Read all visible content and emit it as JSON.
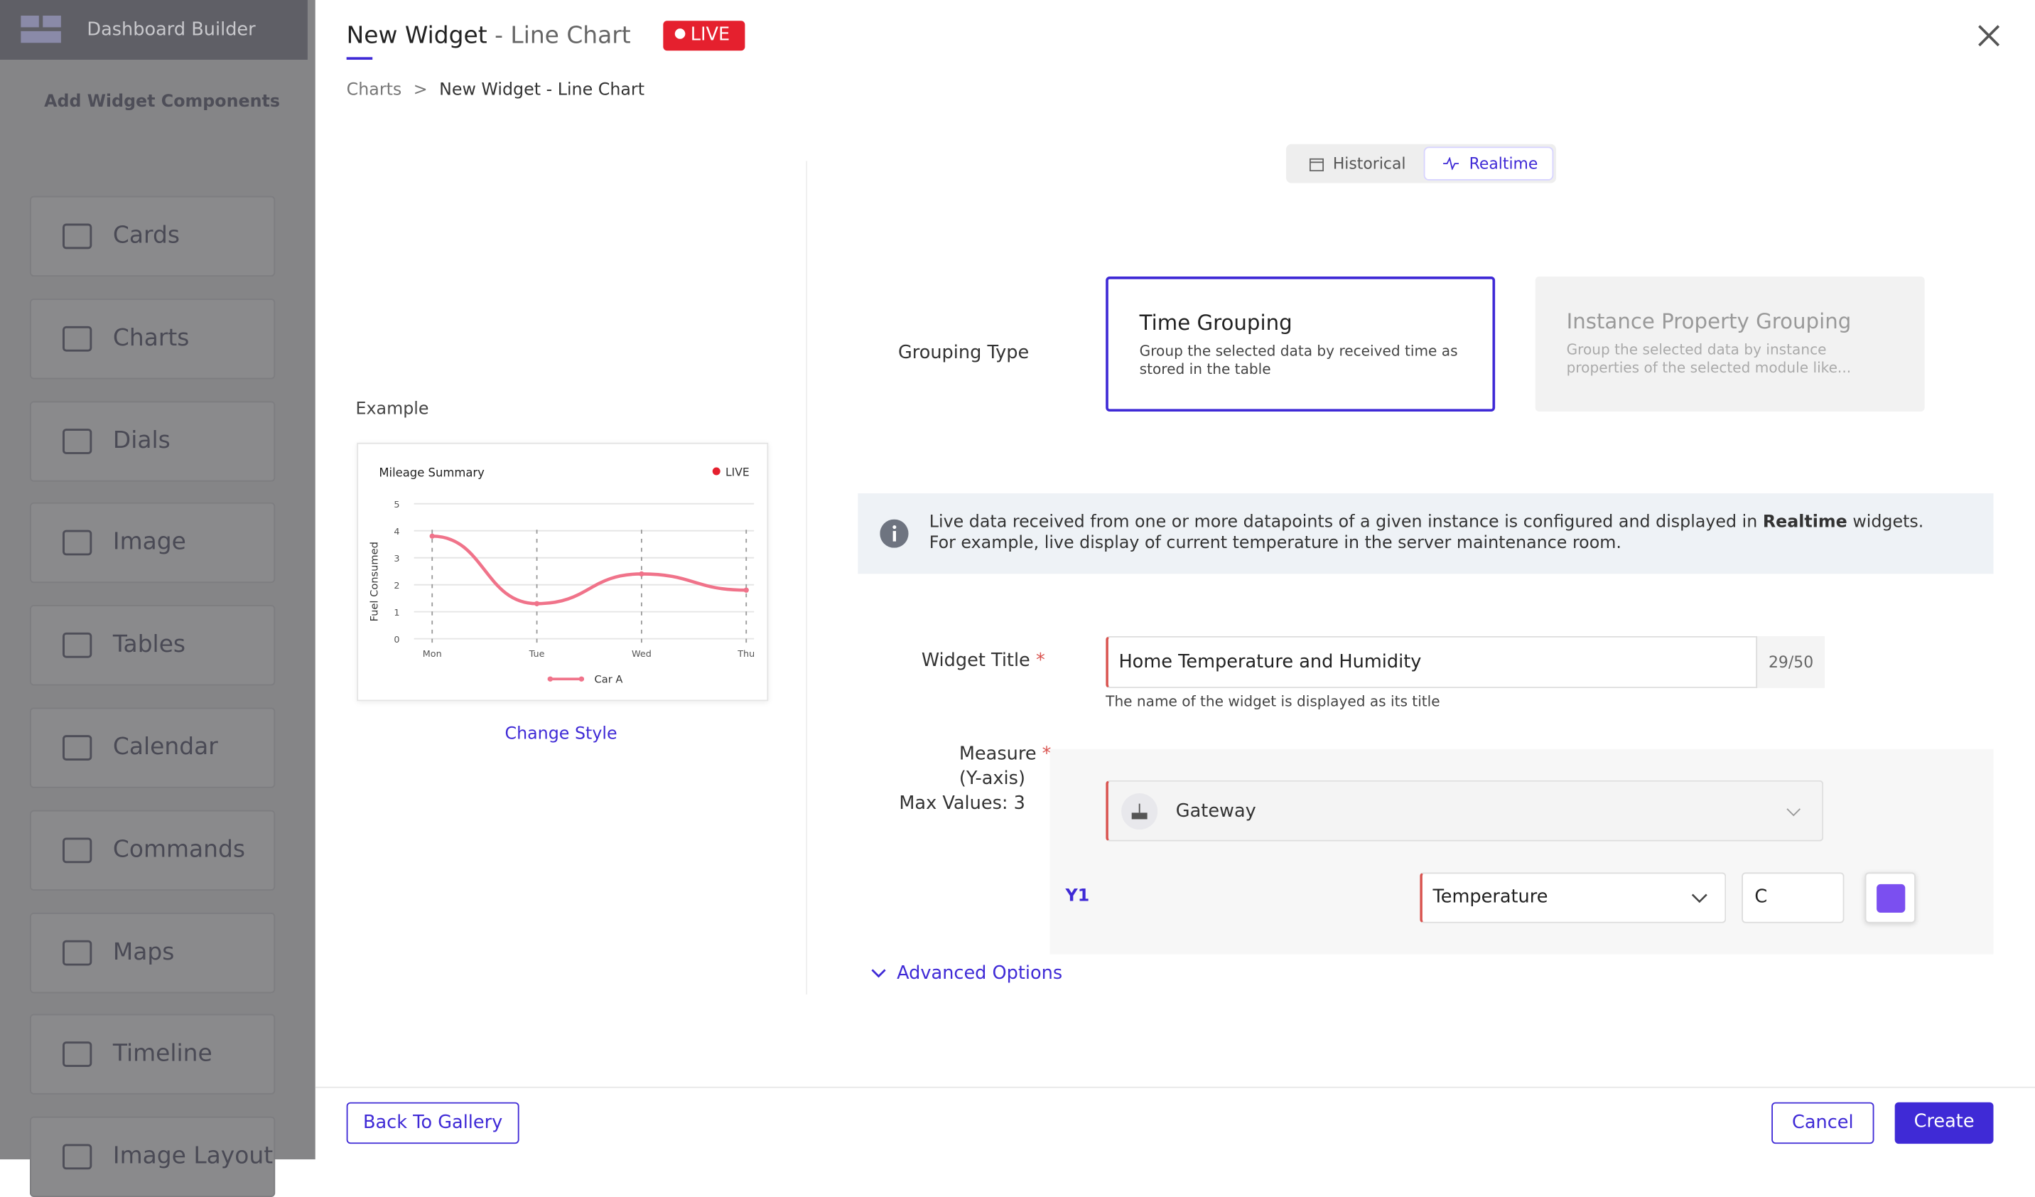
{
  "sidebar": {
    "title": "Dashboard Builder",
    "subtitle": "Add Widget Components",
    "items": [
      "Cards",
      "Charts",
      "Dials",
      "Image",
      "Tables",
      "Calendar",
      "Commands",
      "Maps",
      "Timeline",
      "Image Layout"
    ]
  },
  "header": {
    "title": "New Widget",
    "subtitle": " - Line Chart",
    "badge": "LIVE"
  },
  "breadcrumb": {
    "items": [
      "Charts",
      "New Widget - Line Chart"
    ],
    "separator": ">"
  },
  "tabs": {
    "items": [
      "Historical",
      "Realtime"
    ]
  },
  "example": {
    "label": "Example",
    "change_style": "Change Style",
    "chart": {
      "type": "line",
      "title": "Mileage Summary",
      "badge": "LIVE",
      "y_label": "Fuel Consumed",
      "categories": [
        "Mon",
        "Tue",
        "Wed",
        "Thu"
      ],
      "series": [
        {
          "name": "Car A",
          "color": "#f0738a",
          "values": [
            3.8,
            1.3,
            2.4,
            1.8
          ]
        }
      ],
      "ylim": [
        0,
        5
      ],
      "yticks": [
        0,
        1,
        2,
        3,
        4,
        5
      ],
      "grid": true
    }
  },
  "grouping": {
    "label": "Grouping Type",
    "options": [
      {
        "title": "Time Grouping",
        "description": "Group the selected data by received time as stored in the table"
      },
      {
        "title": "Instance Property Grouping",
        "description": "Group the selected data by instance properties of the selected module like..."
      }
    ]
  },
  "info": {
    "before": "Live data received from one or more datapoints of a given instance is configured and displayed in ",
    "bold": "Realtime",
    "after": " widgets. For example, live display of current temperature in the server maintenance room."
  },
  "form": {
    "required_mark": "*",
    "widget_title": {
      "label": "Widget Title",
      "value": "Home Temperature and Humidity",
      "counter": "29/50",
      "help": "The name of the widget is displayed as its title"
    },
    "measure": {
      "label": "Measure",
      "sub_label": "(Y-axis)",
      "max_values": "Max Values: 3",
      "source": "Gateway",
      "axis": "Y1",
      "field": "Temperature",
      "unit": "C",
      "color": "#7b4ff0"
    },
    "advanced": "Advanced Options"
  },
  "footer": {
    "back": "Back To Gallery",
    "cancel": "Cancel",
    "create": "Create"
  }
}
